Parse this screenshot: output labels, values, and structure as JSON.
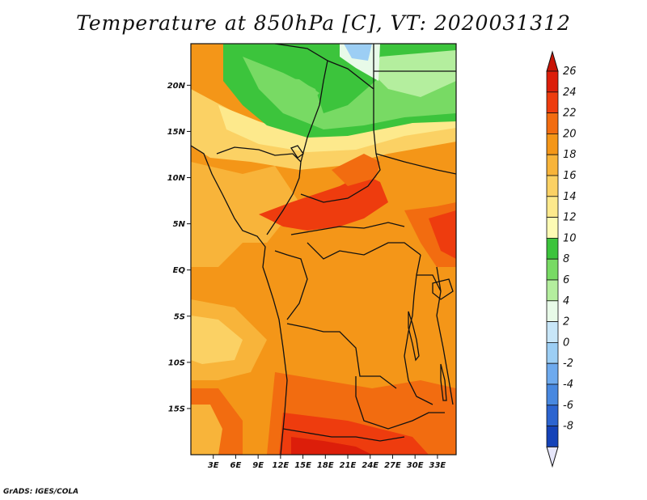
{
  "title": "Temperature at 850hPa [C], VT: 2020031312",
  "credit": "GrADS: IGES/COLA",
  "map": {
    "lon_range": [
      0,
      35.5
    ],
    "lat_range": [
      -20,
      24.5
    ],
    "lat_ticks": [
      {
        "value": 20,
        "label": "20N"
      },
      {
        "value": 15,
        "label": "15N"
      },
      {
        "value": 10,
        "label": "10N"
      },
      {
        "value": 5,
        "label": "5N"
      },
      {
        "value": 0,
        "label": "EQ"
      },
      {
        "value": -5,
        "label": "5S"
      },
      {
        "value": -10,
        "label": "10S"
      },
      {
        "value": -15,
        "label": "15S"
      }
    ],
    "lon_ticks": [
      {
        "value": 3,
        "label": "3E"
      },
      {
        "value": 6,
        "label": "6E"
      },
      {
        "value": 9,
        "label": "9E"
      },
      {
        "value": 12,
        "label": "12E"
      },
      {
        "value": 15,
        "label": "15E"
      },
      {
        "value": 18,
        "label": "18E"
      },
      {
        "value": 21,
        "label": "21E"
      },
      {
        "value": 24,
        "label": "24E"
      },
      {
        "value": 27,
        "label": "27E"
      },
      {
        "value": 30,
        "label": "30E"
      },
      {
        "value": 33,
        "label": "33E"
      }
    ]
  },
  "colorbar": {
    "levels": [
      {
        "label": "26",
        "color": "#dc1e0a"
      },
      {
        "label": "24",
        "color": "#ee3c0e"
      },
      {
        "label": "22",
        "color": "#f26c10"
      },
      {
        "label": "20",
        "color": "#f49618"
      },
      {
        "label": "18",
        "color": "#f8b43a"
      },
      {
        "label": "16",
        "color": "#fbd164"
      },
      {
        "label": "14",
        "color": "#fde98c"
      },
      {
        "label": "12",
        "color": "#fdfbb4"
      },
      {
        "label": "10",
        "color": "#3cc43c"
      },
      {
        "label": "8",
        "color": "#78da64"
      },
      {
        "label": "6",
        "color": "#b4ee9e"
      },
      {
        "label": "4",
        "color": "#e8fae8"
      },
      {
        "label": "2",
        "color": "#c8e6f8"
      },
      {
        "label": "0",
        "color": "#9ccef4"
      },
      {
        "label": "-2",
        "color": "#6eaaee"
      },
      {
        "label": "-4",
        "color": "#4888e0"
      },
      {
        "label": "-6",
        "color": "#2c64d0"
      },
      {
        "label": "-8",
        "color": "#1442b8"
      }
    ],
    "top_color": "#c81406",
    "bottom_band_color": "#0a1e82",
    "bottom_color": "#e6e6fa"
  }
}
